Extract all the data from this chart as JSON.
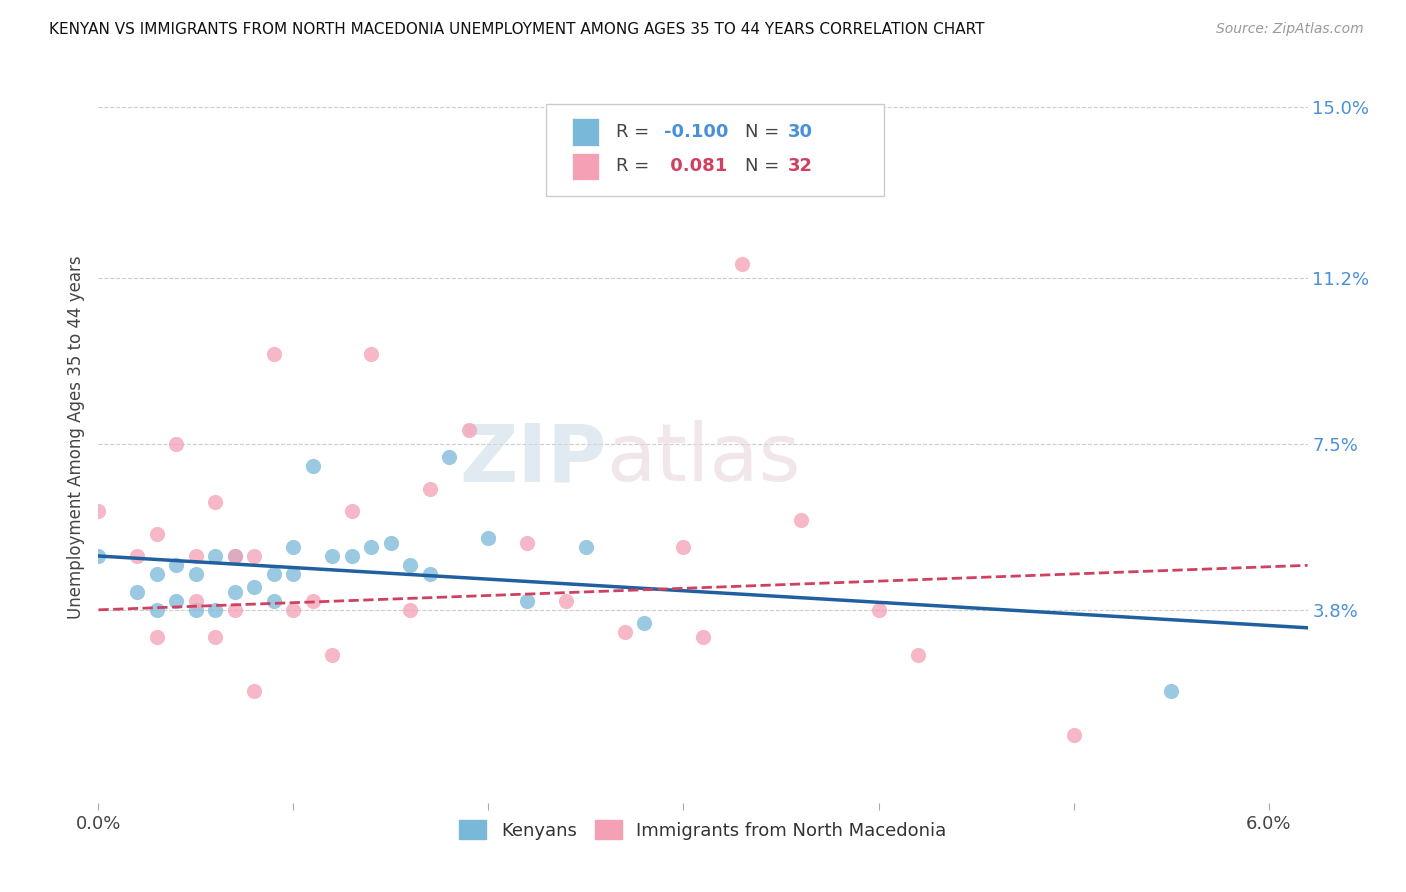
{
  "title": "KENYAN VS IMMIGRANTS FROM NORTH MACEDONIA UNEMPLOYMENT AMONG AGES 35 TO 44 YEARS CORRELATION CHART",
  "source": "Source: ZipAtlas.com",
  "ylabel": "Unemployment Among Ages 35 to 44 years",
  "xlim": [
    0.0,
    0.062
  ],
  "ylim": [
    -0.005,
    0.158
  ],
  "right_yticks": [
    0.038,
    0.075,
    0.112,
    0.15
  ],
  "right_yticklabels": [
    "3.8%",
    "7.5%",
    "11.2%",
    "15.0%"
  ],
  "color_kenyan": "#7ab8d9",
  "color_macedonia": "#f4a0b5",
  "trend_color_kenyan": "#2060a0",
  "trend_color_macedonia": "#d04060",
  "kenyan_x": [
    0.0,
    0.002,
    0.003,
    0.003,
    0.004,
    0.004,
    0.005,
    0.005,
    0.006,
    0.006,
    0.007,
    0.007,
    0.008,
    0.009,
    0.009,
    0.01,
    0.01,
    0.011,
    0.012,
    0.013,
    0.014,
    0.015,
    0.016,
    0.017,
    0.018,
    0.02,
    0.022,
    0.025,
    0.028,
    0.055
  ],
  "kenyan_y": [
    0.05,
    0.042,
    0.038,
    0.046,
    0.04,
    0.048,
    0.038,
    0.046,
    0.038,
    0.05,
    0.042,
    0.05,
    0.043,
    0.04,
    0.046,
    0.052,
    0.046,
    0.07,
    0.05,
    0.05,
    0.052,
    0.053,
    0.048,
    0.046,
    0.072,
    0.054,
    0.04,
    0.052,
    0.035,
    0.02
  ],
  "macedonia_x": [
    0.0,
    0.002,
    0.003,
    0.003,
    0.004,
    0.005,
    0.005,
    0.006,
    0.006,
    0.007,
    0.007,
    0.008,
    0.008,
    0.009,
    0.01,
    0.011,
    0.012,
    0.013,
    0.014,
    0.016,
    0.017,
    0.019,
    0.022,
    0.024,
    0.027,
    0.03,
    0.031,
    0.033,
    0.036,
    0.04,
    0.042,
    0.05
  ],
  "macedonia_y": [
    0.06,
    0.05,
    0.055,
    0.032,
    0.075,
    0.04,
    0.05,
    0.032,
    0.062,
    0.038,
    0.05,
    0.05,
    0.02,
    0.095,
    0.038,
    0.04,
    0.028,
    0.06,
    0.095,
    0.038,
    0.065,
    0.078,
    0.053,
    0.04,
    0.033,
    0.052,
    0.032,
    0.115,
    0.058,
    0.038,
    0.028,
    0.01
  ],
  "kenyan_trend_x0": 0.0,
  "kenyan_trend_y0": 0.05,
  "kenyan_trend_x1": 0.062,
  "kenyan_trend_y1": 0.034,
  "macedonia_trend_x0": 0.0,
  "macedonia_trend_y0": 0.038,
  "macedonia_trend_x1": 0.05,
  "macedonia_trend_y1": 0.046
}
